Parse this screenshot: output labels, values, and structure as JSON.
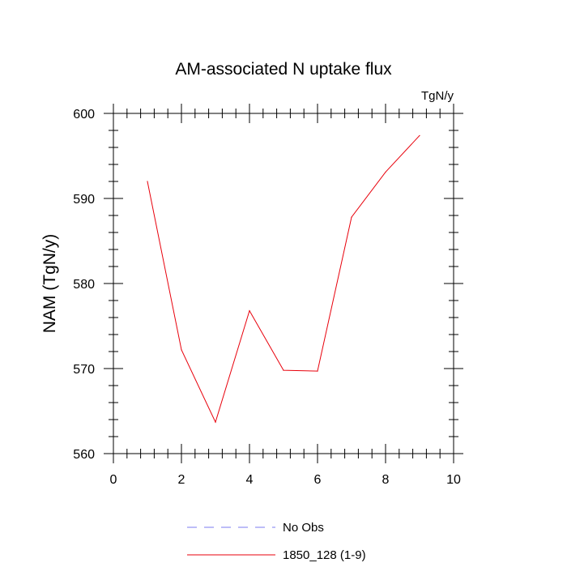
{
  "chart_data": {
    "type": "line",
    "title": "AM-associated N uptake flux",
    "units_label": "TgN/y",
    "ylabel": "NAM  (TgN/y)",
    "xlabel": "",
    "xlim": [
      0,
      10
    ],
    "ylim": [
      560,
      600
    ],
    "x_ticks": [
      0,
      2,
      4,
      6,
      8,
      10
    ],
    "y_ticks": [
      560,
      570,
      580,
      590,
      600
    ],
    "grid": false,
    "legend_position": "bottom-center",
    "series": [
      {
        "name": "No Obs",
        "color": "#7b7bf0",
        "dash": "dashed",
        "x": [],
        "y": []
      },
      {
        "name": "1850_128 (1-9)",
        "color": "#e8000b",
        "dash": "solid",
        "x": [
          1,
          2,
          3,
          4,
          5,
          6,
          7,
          8,
          9
        ],
        "y": [
          592.0,
          572.2,
          563.7,
          576.8,
          569.8,
          569.7,
          587.8,
          593.1,
          597.4
        ]
      }
    ]
  }
}
